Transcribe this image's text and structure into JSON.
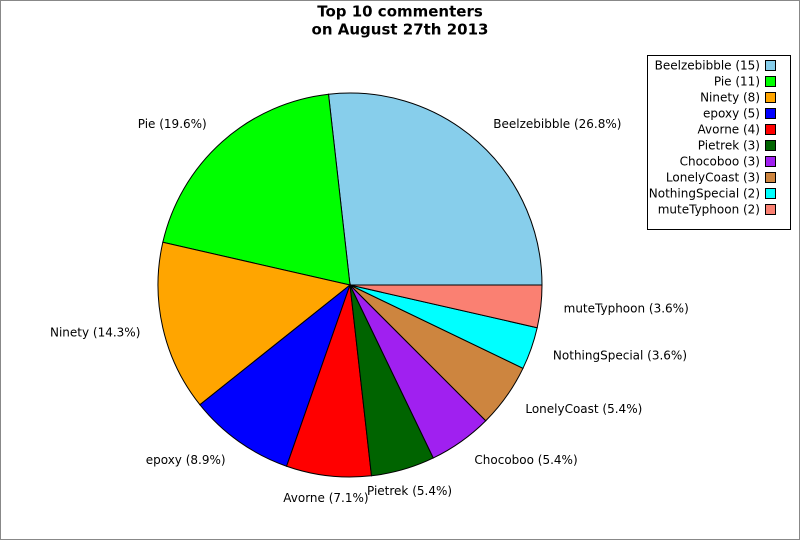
{
  "chart_data": {
    "type": "pie",
    "title": "Top 10 commenters",
    "subtitle": "on August 27th 2013",
    "values": [
      15,
      11,
      8,
      5,
      4,
      3,
      3,
      3,
      2,
      2
    ],
    "legend_labels": [
      "Beelzebibble (15)",
      "Pie (11)",
      "Ninety (8)",
      "epoxy (5)",
      "Avorne (4)",
      "Pietrek (3)",
      "Chocoboo (3)",
      "LonelyCoast (3)",
      "NothingSpecial (2)",
      "muteTyphoon (2)"
    ],
    "slice_labels": [
      "Beelzebibble (26.8%)",
      "Pie (19.6%)",
      "Ninety (14.3%)",
      "epoxy (8.9%)",
      "Avorne (7.1%)",
      "Pietrek (5.4%)",
      "Chocoboo (5.4%)",
      "LonelyCoast (5.4%)",
      "NothingSpecial (3.6%)",
      "muteTyphoon (3.6%)"
    ],
    "colors": [
      "#87ceeb",
      "#00ff00",
      "#ffa500",
      "#0000ff",
      "#ff0000",
      "#006400",
      "#a020f0",
      "#cd853f",
      "#00ffff",
      "#fa8072"
    ],
    "legend": "top-right"
  }
}
